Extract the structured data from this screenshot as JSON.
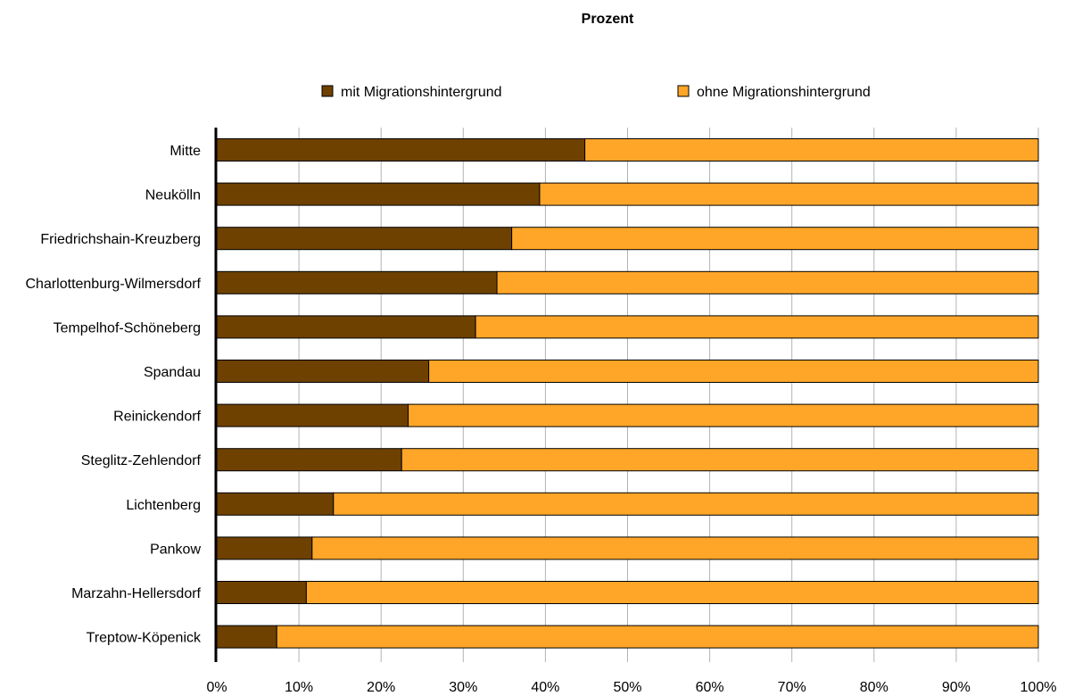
{
  "chart_data": {
    "type": "bar",
    "orientation": "horizontal",
    "stacked": true,
    "title": "Prozent",
    "xlabel": "",
    "ylabel": "",
    "xlim": [
      0,
      100
    ],
    "x_ticks": [
      "0%",
      "10%",
      "20%",
      "30%",
      "40%",
      "50%",
      "60%",
      "70%",
      "80%",
      "90%",
      "100%"
    ],
    "grid": true,
    "legend_position": "top",
    "categories": [
      "Mitte",
      "Neukölln",
      "Friedrichshain-Kreuzberg",
      "Charlottenburg-Wilmersdorf",
      "Tempelhof-Schöneberg",
      "Spandau",
      "Reinickendorf",
      "Steglitz-Zehlendorf",
      "Lichtenberg",
      "Pankow",
      "Marzahn-Hellersdorf",
      "Treptow-Köpenick"
    ],
    "series": [
      {
        "name": "mit Migrationshintergrund",
        "color": "#6e4100",
        "values": [
          44.8,
          39.3,
          35.9,
          34.1,
          31.5,
          25.8,
          23.3,
          22.5,
          14.2,
          11.6,
          10.9,
          7.3
        ]
      },
      {
        "name": "ohne Migrationshintergrund",
        "color": "#ffa629",
        "values": [
          55.2,
          60.7,
          64.1,
          65.9,
          68.5,
          74.2,
          76.7,
          77.5,
          85.8,
          88.4,
          89.1,
          92.7
        ]
      }
    ]
  }
}
